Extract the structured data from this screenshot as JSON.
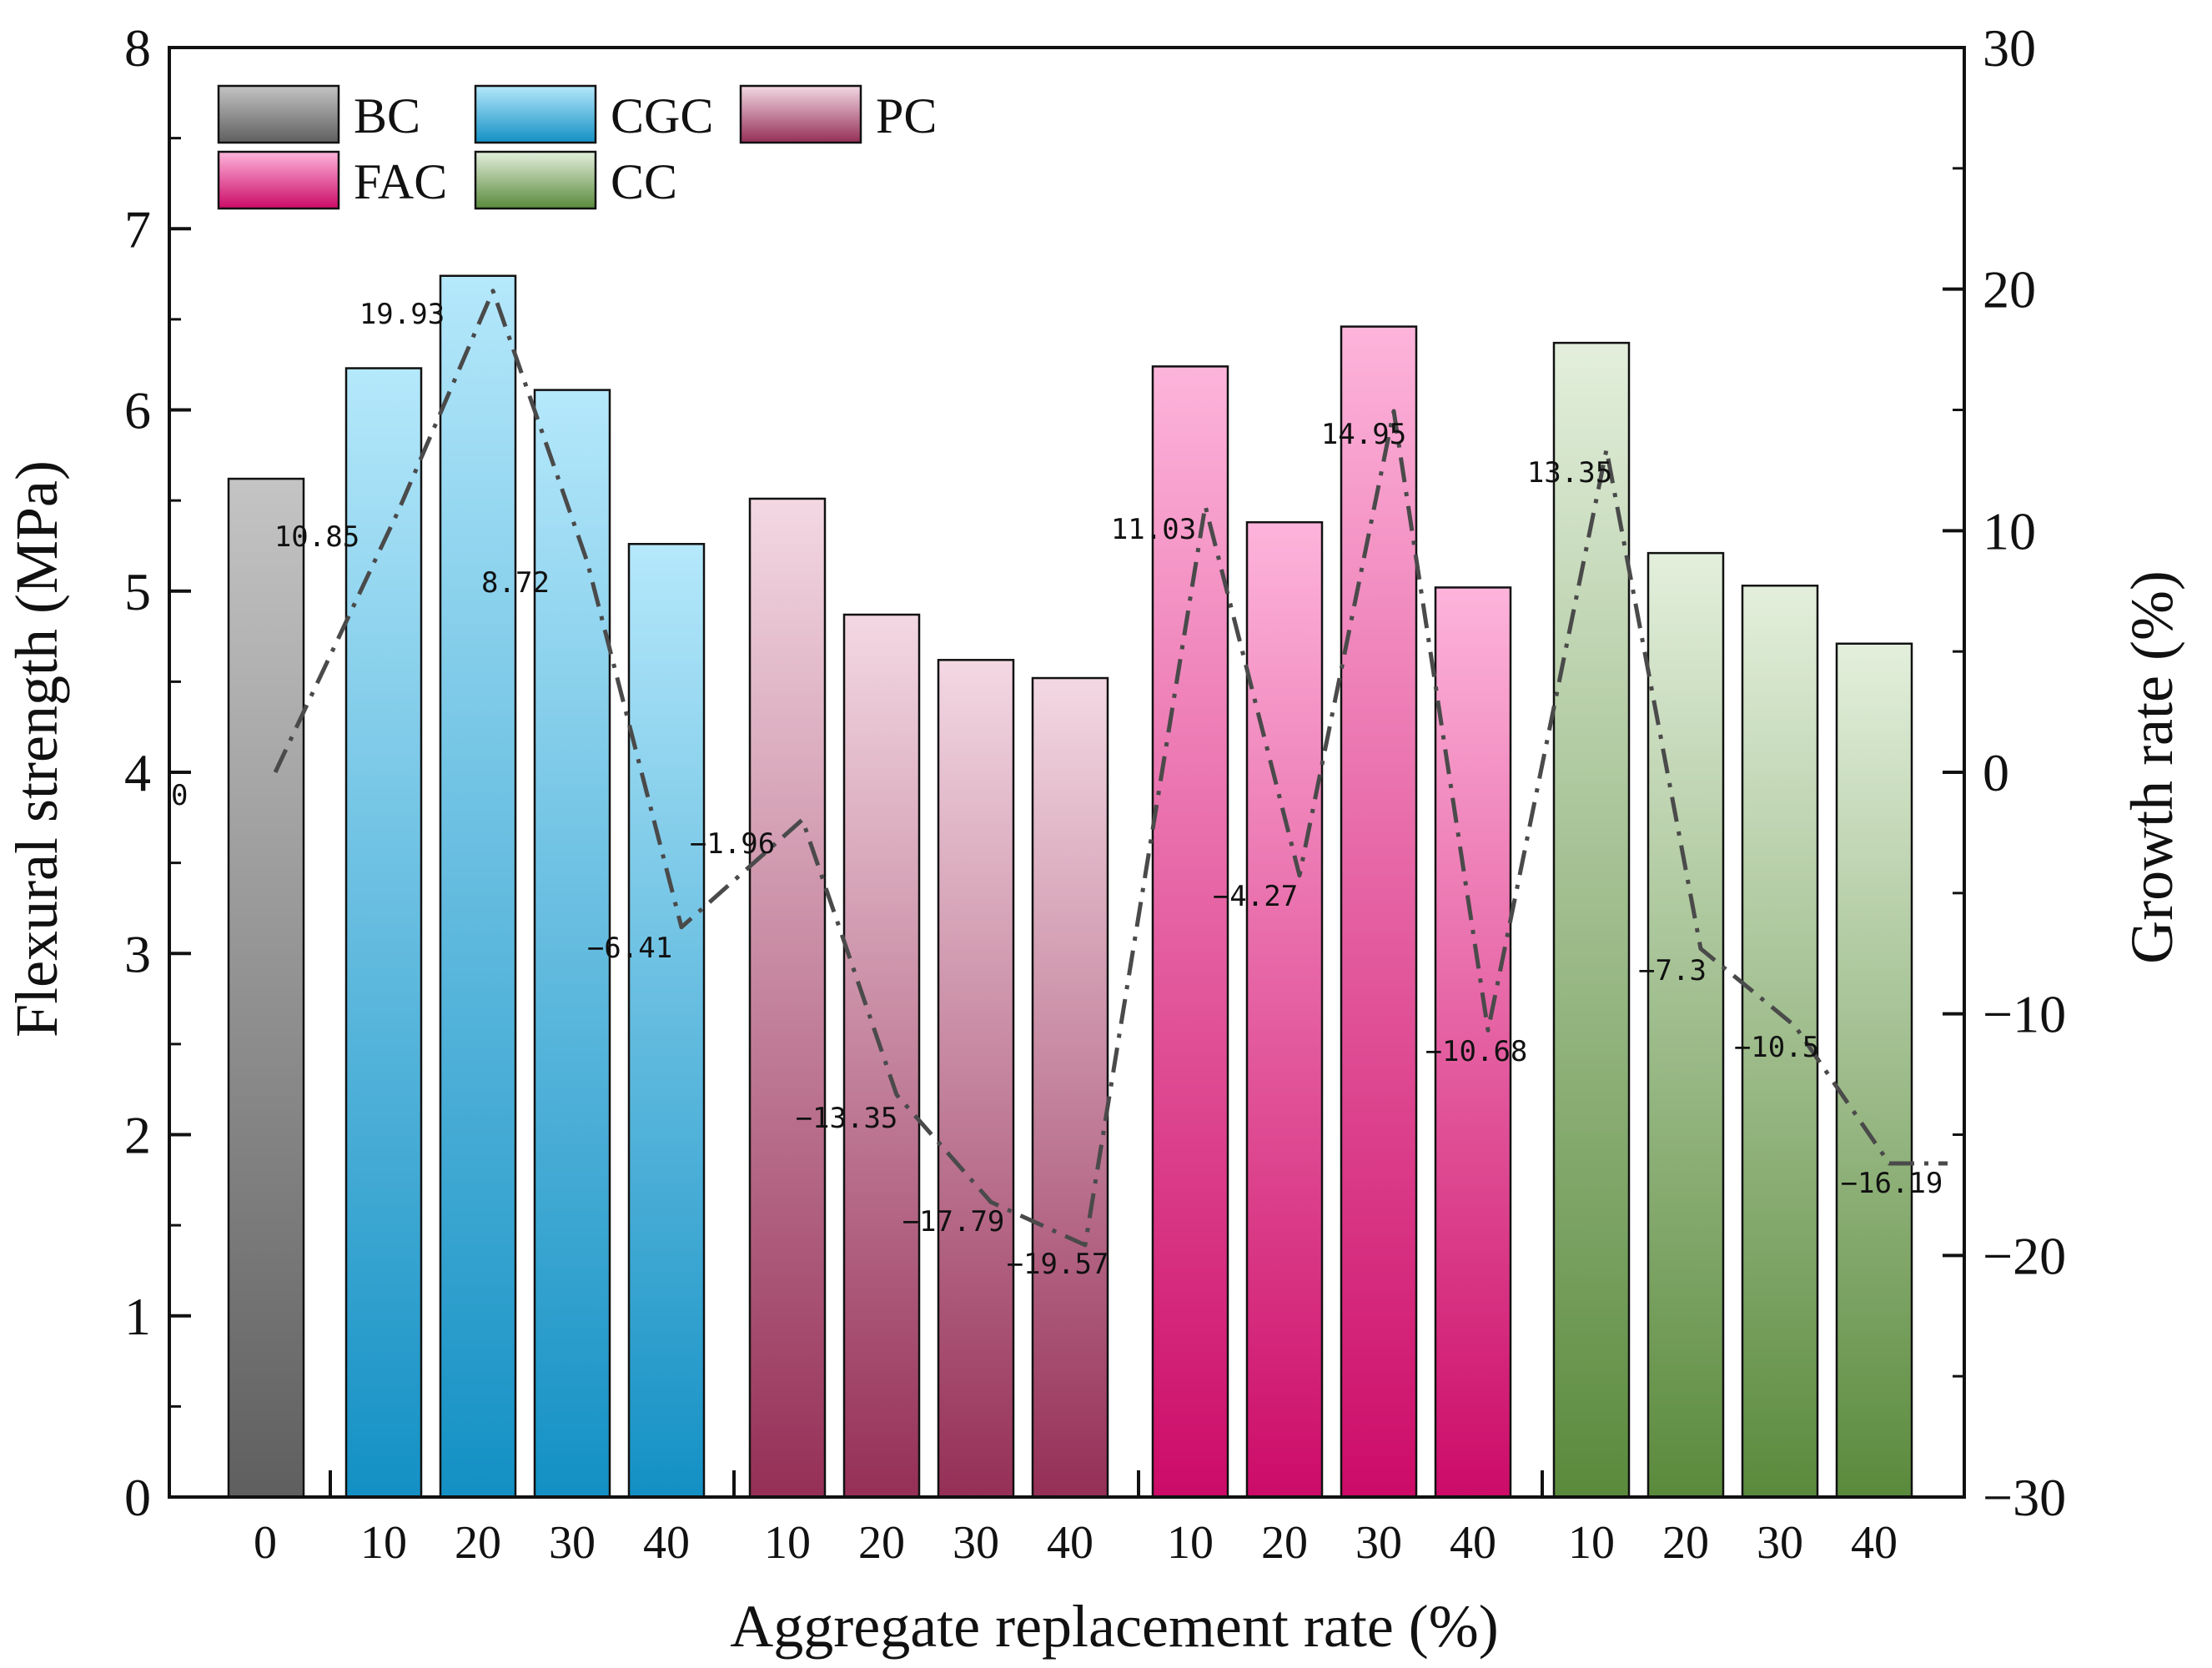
{
  "chart_data": {
    "type": "bar",
    "xlabel": "Aggregate replacement rate (%)",
    "ylabel": "Flexural strength (MPa)",
    "ylabel_right": "Growth rate (%)",
    "ylim": [
      0,
      8
    ],
    "ylim_right": [
      -30,
      30
    ],
    "yticks": [
      "0",
      "1",
      "2",
      "3",
      "4",
      "5",
      "6",
      "7",
      "8"
    ],
    "yticks_right": [
      "−30",
      "−20",
      "−10",
      "0",
      "10",
      "20",
      "30"
    ],
    "groups": [
      {
        "name": "BC",
        "bottom": "#5f5f5f",
        "top": "#c4c4c4",
        "categories": [
          "0"
        ],
        "values": [
          5.62
        ],
        "growth": [
          0
        ],
        "growth_labels": [
          "0"
        ]
      },
      {
        "name": "CGC",
        "bottom": "#1390c4",
        "top": "#b5e8fb",
        "categories": [
          "10",
          "20",
          "30",
          "40"
        ],
        "values": [
          6.23,
          6.74,
          6.11,
          5.26
        ],
        "growth": [
          10.85,
          19.93,
          8.72,
          -6.41
        ],
        "growth_labels": [
          "10.85",
          "19.93",
          "8.72",
          "−6.41"
        ]
      },
      {
        "name": "PC",
        "bottom": "#952f56",
        "top": "#f3d8e3",
        "categories": [
          "10",
          "20",
          "30",
          "40"
        ],
        "values": [
          5.51,
          4.87,
          4.62,
          4.52
        ],
        "growth": [
          -1.96,
          -13.35,
          -17.79,
          -19.57
        ],
        "growth_labels": [
          "−1.96",
          "−13.35",
          "−17.79",
          "−19.57"
        ]
      },
      {
        "name": "FAC",
        "bottom": "#cc0b68",
        "top": "#fdb4db",
        "categories": [
          "10",
          "20",
          "30",
          "40"
        ],
        "values": [
          6.24,
          5.38,
          6.46,
          5.02
        ],
        "growth": [
          11.03,
          -4.27,
          14.95,
          -10.68
        ],
        "growth_labels": [
          "11.03",
          "−4.27",
          "14.95",
          "−10.68"
        ]
      },
      {
        "name": "CC",
        "bottom": "#5a8a3c",
        "top": "#e3efdc",
        "categories": [
          "10",
          "20",
          "30",
          "40"
        ],
        "values": [
          6.37,
          5.21,
          5.03,
          4.71
        ],
        "growth": [
          13.35,
          -7.3,
          -10.5,
          -16.19
        ],
        "growth_labels": [
          "13.35",
          "−7.3",
          "−10.5",
          "−16.19"
        ]
      }
    ],
    "legend": [
      "BC",
      "CGC",
      "PC",
      "FAC",
      "CC"
    ],
    "legend_position": "top-left",
    "line_color": "#4a4a4a"
  }
}
